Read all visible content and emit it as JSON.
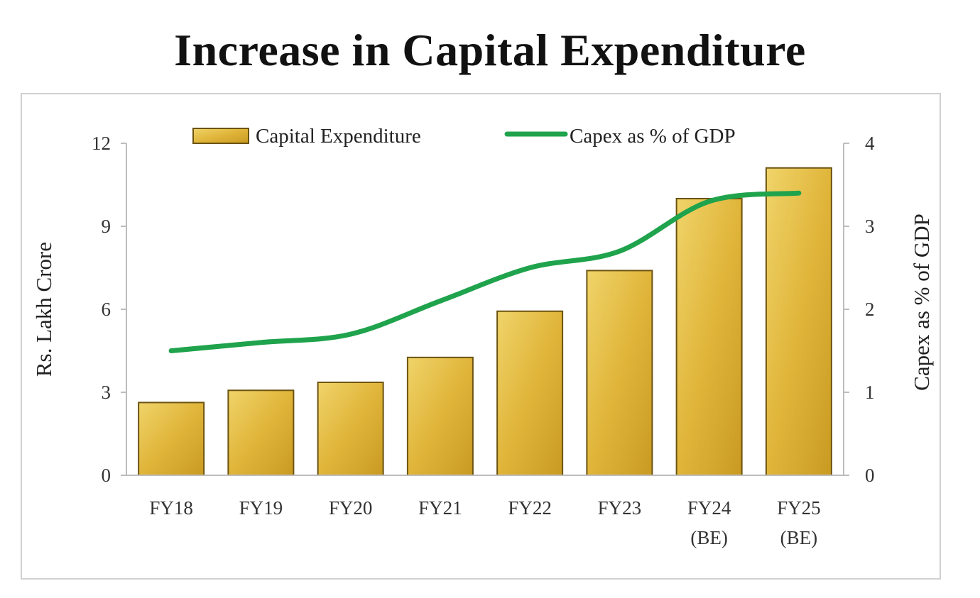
{
  "title": "Increase in Capital Expenditure",
  "chart_data": {
    "type": "bar",
    "categories": [
      [
        "FY18"
      ],
      [
        "FY19"
      ],
      [
        "FY20"
      ],
      [
        "FY21"
      ],
      [
        "FY22"
      ],
      [
        "FY23"
      ],
      [
        "FY24",
        "(BE)"
      ],
      [
        "FY25",
        "(BE)"
      ]
    ],
    "series": [
      {
        "name": "Capital Expenditure",
        "type": "bar",
        "axis": "left",
        "values": [
          2.63,
          3.07,
          3.36,
          4.26,
          5.93,
          7.4,
          10.0,
          11.11
        ],
        "color": "#e2b840"
      },
      {
        "name": "Capex as % of GDP",
        "type": "line",
        "axis": "right",
        "values": [
          1.5,
          1.6,
          1.7,
          2.1,
          2.5,
          2.7,
          3.3,
          3.4
        ],
        "color": "#1fa34c"
      }
    ],
    "ylabel": "Rs. Lakh Crore",
    "y2label": "Capex as % of GDP",
    "ylim": [
      0,
      12
    ],
    "y2lim": [
      0,
      4
    ],
    "yticks": [
      "0",
      "3",
      "6",
      "9",
      "12"
    ],
    "y2ticks": [
      "0",
      "1",
      "2",
      "3",
      "4"
    ],
    "grid": false,
    "legend": "top"
  }
}
